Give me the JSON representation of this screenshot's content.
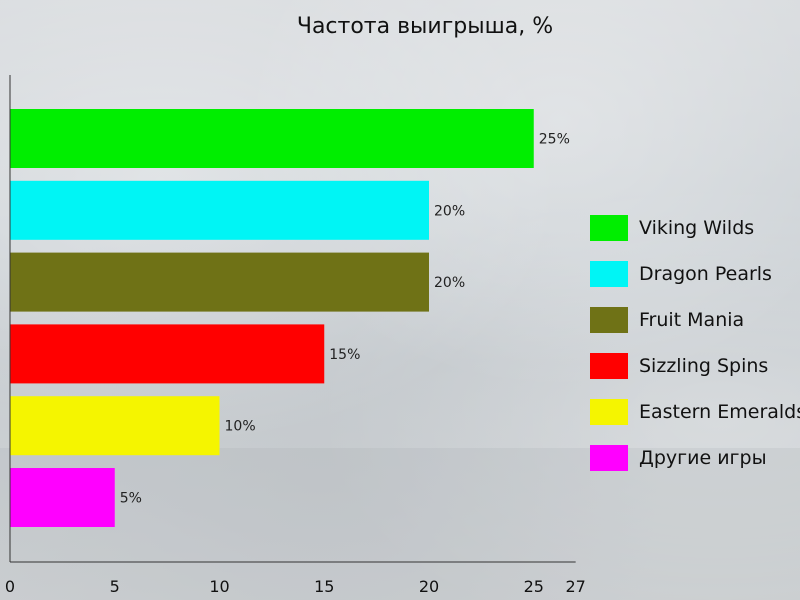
{
  "chart_data": {
    "type": "bar",
    "orientation": "horizontal",
    "title": "Частота выигрыша, %",
    "xlabel": "",
    "ylabel": "",
    "xlim": [
      0,
      27
    ],
    "x_ticks": [
      0,
      5,
      10,
      15,
      20,
      25,
      27
    ],
    "grid": false,
    "legend_position": "right",
    "categories": [
      "Viking Wilds",
      "Dragon Pearls",
      "Fruit Mania",
      "Sizzling Spins",
      "Eastern Emeralds",
      "Другие игры"
    ],
    "values": [
      25,
      20,
      20,
      15,
      10,
      5
    ],
    "value_labels": [
      "25%",
      "20%",
      "20%",
      "15%",
      "10%",
      "5%"
    ],
    "colors": [
      "#00ee00",
      "#00f5f5",
      "#6f7216",
      "#ff0000",
      "#f5f500",
      "#ff00ff"
    ]
  }
}
